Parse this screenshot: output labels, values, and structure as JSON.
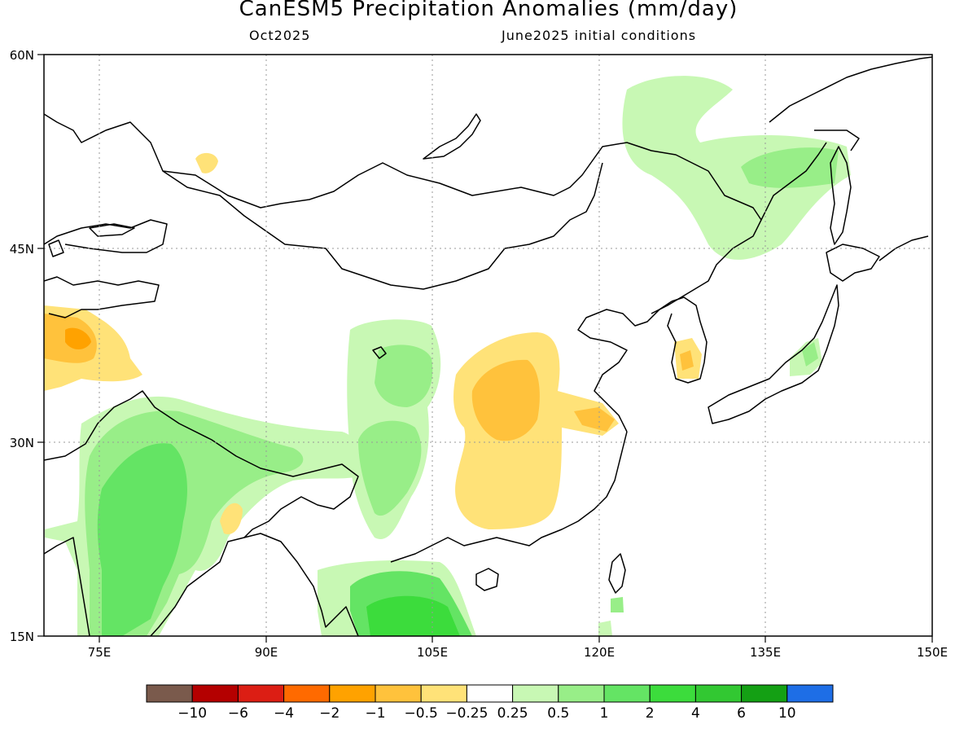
{
  "title": "CanESM5 Precipitation Anomalies (mm/day)",
  "subtitle_left": "Oct2025",
  "subtitle_right": "June2025 initial conditions",
  "map": {
    "lon_range": [
      70,
      150
    ],
    "lat_range": [
      15,
      60
    ],
    "lat_ticks": [
      "15N",
      "30N",
      "45N",
      "60N"
    ],
    "lon_ticks": [
      "75E",
      "90E",
      "105E",
      "120E",
      "135E",
      "150E"
    ]
  },
  "colorbar": {
    "colors": [
      "#7a5a4c",
      "#b40000",
      "#dc1e14",
      "#ff6a00",
      "#ffa200",
      "#ffc23c",
      "#ffe278",
      "#ffffff",
      "#c8f8b4",
      "#98ee88",
      "#64e464",
      "#3cdc3c",
      "#32c832",
      "#14a014",
      "#1e6ee6"
    ],
    "labels": [
      "−10",
      "−6",
      "−4",
      "−2",
      "−1",
      "−0.5",
      "−0.25",
      "0.25",
      "0.5",
      "1",
      "2",
      "4",
      "6",
      "10"
    ]
  }
}
